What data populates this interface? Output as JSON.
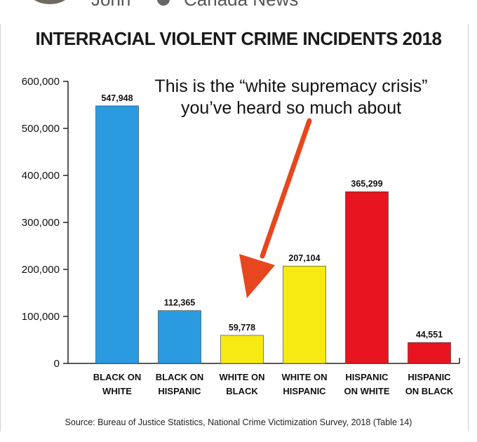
{
  "header": {
    "user_name": "John",
    "page_name": "Canada News"
  },
  "chart_data": {
    "type": "bar",
    "title": "INTERRACIAL VIOLENT CRIME INCIDENTS 2018",
    "categories": [
      [
        "BLACK ON",
        "WHITE"
      ],
      [
        "BLACK ON",
        "HISPANIC"
      ],
      [
        "WHITE ON",
        "BLACK"
      ],
      [
        "WHITE ON",
        "HISPANIC"
      ],
      [
        "HISPANIC",
        "ON WHITE"
      ],
      [
        "HISPANIC",
        "ON BLACK"
      ]
    ],
    "values": [
      547948,
      112365,
      59778,
      207104,
      365299,
      44551
    ],
    "value_labels": [
      "547,948",
      "112,365",
      "59,778",
      "207,104",
      "365,299",
      "44,551"
    ],
    "bar_colors": [
      "#2a9be0",
      "#2a9be0",
      "#f6ea12",
      "#f6ea12",
      "#e8141f",
      "#e8141f"
    ],
    "ylim": [
      0,
      600000
    ],
    "yticks": [
      0,
      100000,
      200000,
      300000,
      400000,
      500000,
      600000
    ],
    "ytick_labels": [
      "0",
      "100,000",
      "200,000",
      "300,000",
      "400,000",
      "500,000",
      "600,000"
    ],
    "annotation": [
      "This is the “white supremacy crisis”",
      "you’ve heard so much about"
    ],
    "arrow_color": "#e8461e",
    "source": "Source: Bureau of Justice Statistics, National Crime Victimization Survey, 2018 (Table 14)"
  }
}
